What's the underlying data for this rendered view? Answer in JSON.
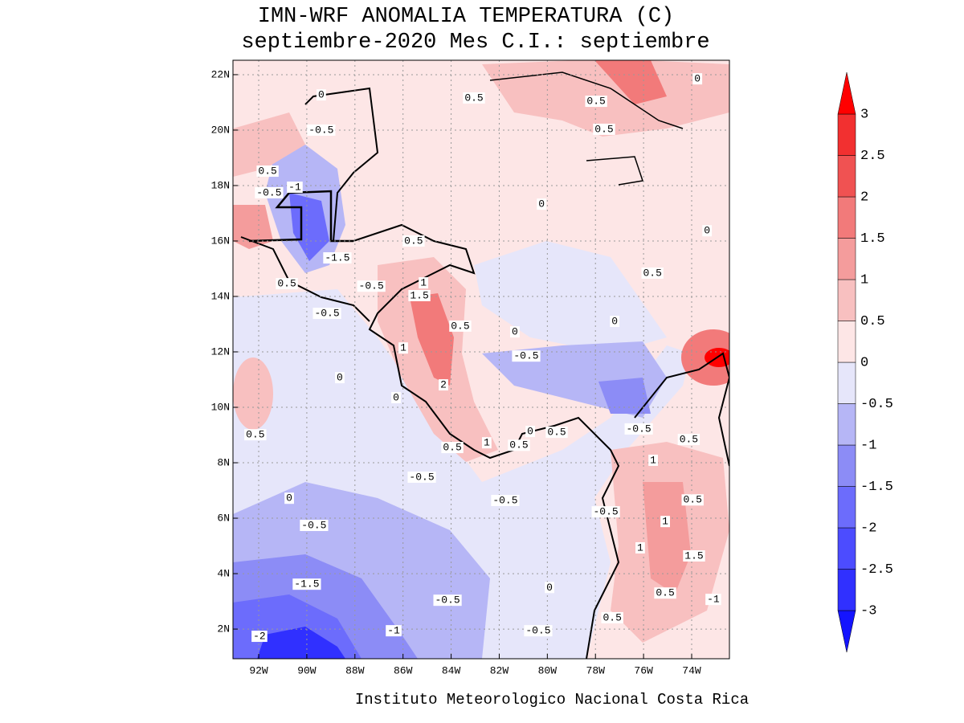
{
  "chart_data": {
    "type": "contour-map",
    "title": [
      "IMN-WRF  ANOMALIA TEMPERATURA (C)",
      "septiembre-2020 Mes C.I.: septiembre"
    ],
    "footer": "Instituto Meteorologico Nacional Costa Rica",
    "xlim": [
      -93.07,
      -72.43
    ],
    "ylim": [
      0.93,
      22.52
    ],
    "xticks": [
      {
        "value": -92,
        "label": "92W"
      },
      {
        "value": -90,
        "label": "90W"
      },
      {
        "value": -88,
        "label": "88W"
      },
      {
        "value": -86,
        "label": "86W"
      },
      {
        "value": -84,
        "label": "84W"
      },
      {
        "value": -82,
        "label": "82W"
      },
      {
        "value": -80,
        "label": "80W"
      },
      {
        "value": -78,
        "label": "78W"
      },
      {
        "value": -76,
        "label": "76W"
      },
      {
        "value": -74,
        "label": "74W"
      }
    ],
    "yticks": [
      {
        "value": 2,
        "label": "2N"
      },
      {
        "value": 4,
        "label": "4N"
      },
      {
        "value": 6,
        "label": "6N"
      },
      {
        "value": 8,
        "label": "8N"
      },
      {
        "value": 10,
        "label": "10N"
      },
      {
        "value": 12,
        "label": "12N"
      },
      {
        "value": 14,
        "label": "14N"
      },
      {
        "value": 16,
        "label": "16N"
      },
      {
        "value": 18,
        "label": "18N"
      },
      {
        "value": 20,
        "label": "20N"
      },
      {
        "value": 22,
        "label": "22N"
      }
    ],
    "grid": true,
    "levels": [
      -3,
      -2.5,
      -2,
      -1.5,
      -1,
      -0.5,
      0,
      0.5,
      1,
      1.5,
      2,
      2.5,
      3
    ],
    "colors": [
      "#1414ff",
      "#3030ff",
      "#4c4cff",
      "#6c6cfc",
      "#8c8cf6",
      "#b6b6f6",
      "#e6e6fa",
      "#fde6e6",
      "#f8c0c0",
      "#f49c9c",
      "#f27a7a",
      "#f05252",
      "#f23030",
      "#ff0000"
    ],
    "contour_labels": [
      {
        "value": 0.5,
        "lon": -83.05,
        "lat": 21.16
      },
      {
        "value": 0.5,
        "lon": -77.97,
        "lat": 21.04
      },
      {
        "value": 0.5,
        "lon": -77.64,
        "lat": 20.03
      },
      {
        "value": 0,
        "lon": -73.76,
        "lat": 21.85
      },
      {
        "value": 0,
        "lon": -89.4,
        "lat": 21.27
      },
      {
        "value": -0.5,
        "lon": -89.4,
        "lat": 20.0
      },
      {
        "value": 0.5,
        "lon": -91.63,
        "lat": 18.52
      },
      {
        "value": -0.5,
        "lon": -91.57,
        "lat": 17.74
      },
      {
        "value": -1,
        "lon": -90.5,
        "lat": 17.94
      },
      {
        "value": 0,
        "lon": -80.24,
        "lat": 17.33
      },
      {
        "value": 0,
        "lon": -73.36,
        "lat": 16.37
      },
      {
        "value": -1.5,
        "lon": -88.73,
        "lat": 15.39
      },
      {
        "value": 0.5,
        "lon": -85.56,
        "lat": 16.0
      },
      {
        "value": 0.5,
        "lon": -90.83,
        "lat": 14.46
      },
      {
        "value": -0.5,
        "lon": -87.32,
        "lat": 14.37
      },
      {
        "value": 1,
        "lon": -85.15,
        "lat": 14.49
      },
      {
        "value": 1.5,
        "lon": -85.32,
        "lat": 14.03
      },
      {
        "value": -0.5,
        "lon": -89.16,
        "lat": 13.39
      },
      {
        "value": 0.5,
        "lon": -83.62,
        "lat": 12.93
      },
      {
        "value": 0,
        "lon": -77.2,
        "lat": 13.1
      },
      {
        "value": 0.5,
        "lon": -75.63,
        "lat": 14.84
      },
      {
        "value": 0,
        "lon": -81.35,
        "lat": 12.72
      },
      {
        "value": -0.5,
        "lon": -80.88,
        "lat": 11.85
      },
      {
        "value": 1,
        "lon": -85.99,
        "lat": 12.14
      },
      {
        "value": 0,
        "lon": -88.63,
        "lat": 11.07
      },
      {
        "value": 2,
        "lon": -84.32,
        "lat": 10.81
      },
      {
        "value": 0,
        "lon": -86.29,
        "lat": 10.35
      },
      {
        "value": 0.5,
        "lon": -92.14,
        "lat": 9.01
      },
      {
        "value": -0.5,
        "lon": -76.2,
        "lat": 9.22
      },
      {
        "value": 0,
        "lon": -80.71,
        "lat": 9.13
      },
      {
        "value": 0.5,
        "lon": -79.61,
        "lat": 9.1
      },
      {
        "value": 0.5,
        "lon": -83.95,
        "lat": 8.55
      },
      {
        "value": 1,
        "lon": -82.52,
        "lat": 8.72
      },
      {
        "value": 0.5,
        "lon": -81.18,
        "lat": 8.63
      },
      {
        "value": 0.5,
        "lon": -74.12,
        "lat": 8.84
      },
      {
        "value": 1,
        "lon": -75.6,
        "lat": 8.09
      },
      {
        "value": -0.5,
        "lon": -85.22,
        "lat": 7.48
      },
      {
        "value": -0.5,
        "lon": -81.75,
        "lat": 6.64
      },
      {
        "value": -0.5,
        "lon": -77.57,
        "lat": 6.23
      },
      {
        "value": 0.5,
        "lon": -73.96,
        "lat": 6.66
      },
      {
        "value": 1,
        "lon": -75.1,
        "lat": 5.88
      },
      {
        "value": 0,
        "lon": -90.73,
        "lat": 6.72
      },
      {
        "value": -0.5,
        "lon": -89.7,
        "lat": 5.74
      },
      {
        "value": 1,
        "lon": -76.14,
        "lat": 4.93
      },
      {
        "value": 1.5,
        "lon": -73.9,
        "lat": 4.64
      },
      {
        "value": -1.5,
        "lon": -90.0,
        "lat": 3.62
      },
      {
        "value": 0,
        "lon": -79.91,
        "lat": 3.5
      },
      {
        "value": -0.5,
        "lon": -84.15,
        "lat": 3.04
      },
      {
        "value": 0.5,
        "lon": -75.1,
        "lat": 3.3
      },
      {
        "value": -1,
        "lon": -73.1,
        "lat": 3.07
      },
      {
        "value": 0.5,
        "lon": -77.3,
        "lat": 2.41
      },
      {
        "value": -1,
        "lon": -86.39,
        "lat": 1.94
      },
      {
        "value": -0.5,
        "lon": -80.38,
        "lat": 1.94
      },
      {
        "value": -2,
        "lon": -91.97,
        "lat": 1.74
      }
    ]
  }
}
